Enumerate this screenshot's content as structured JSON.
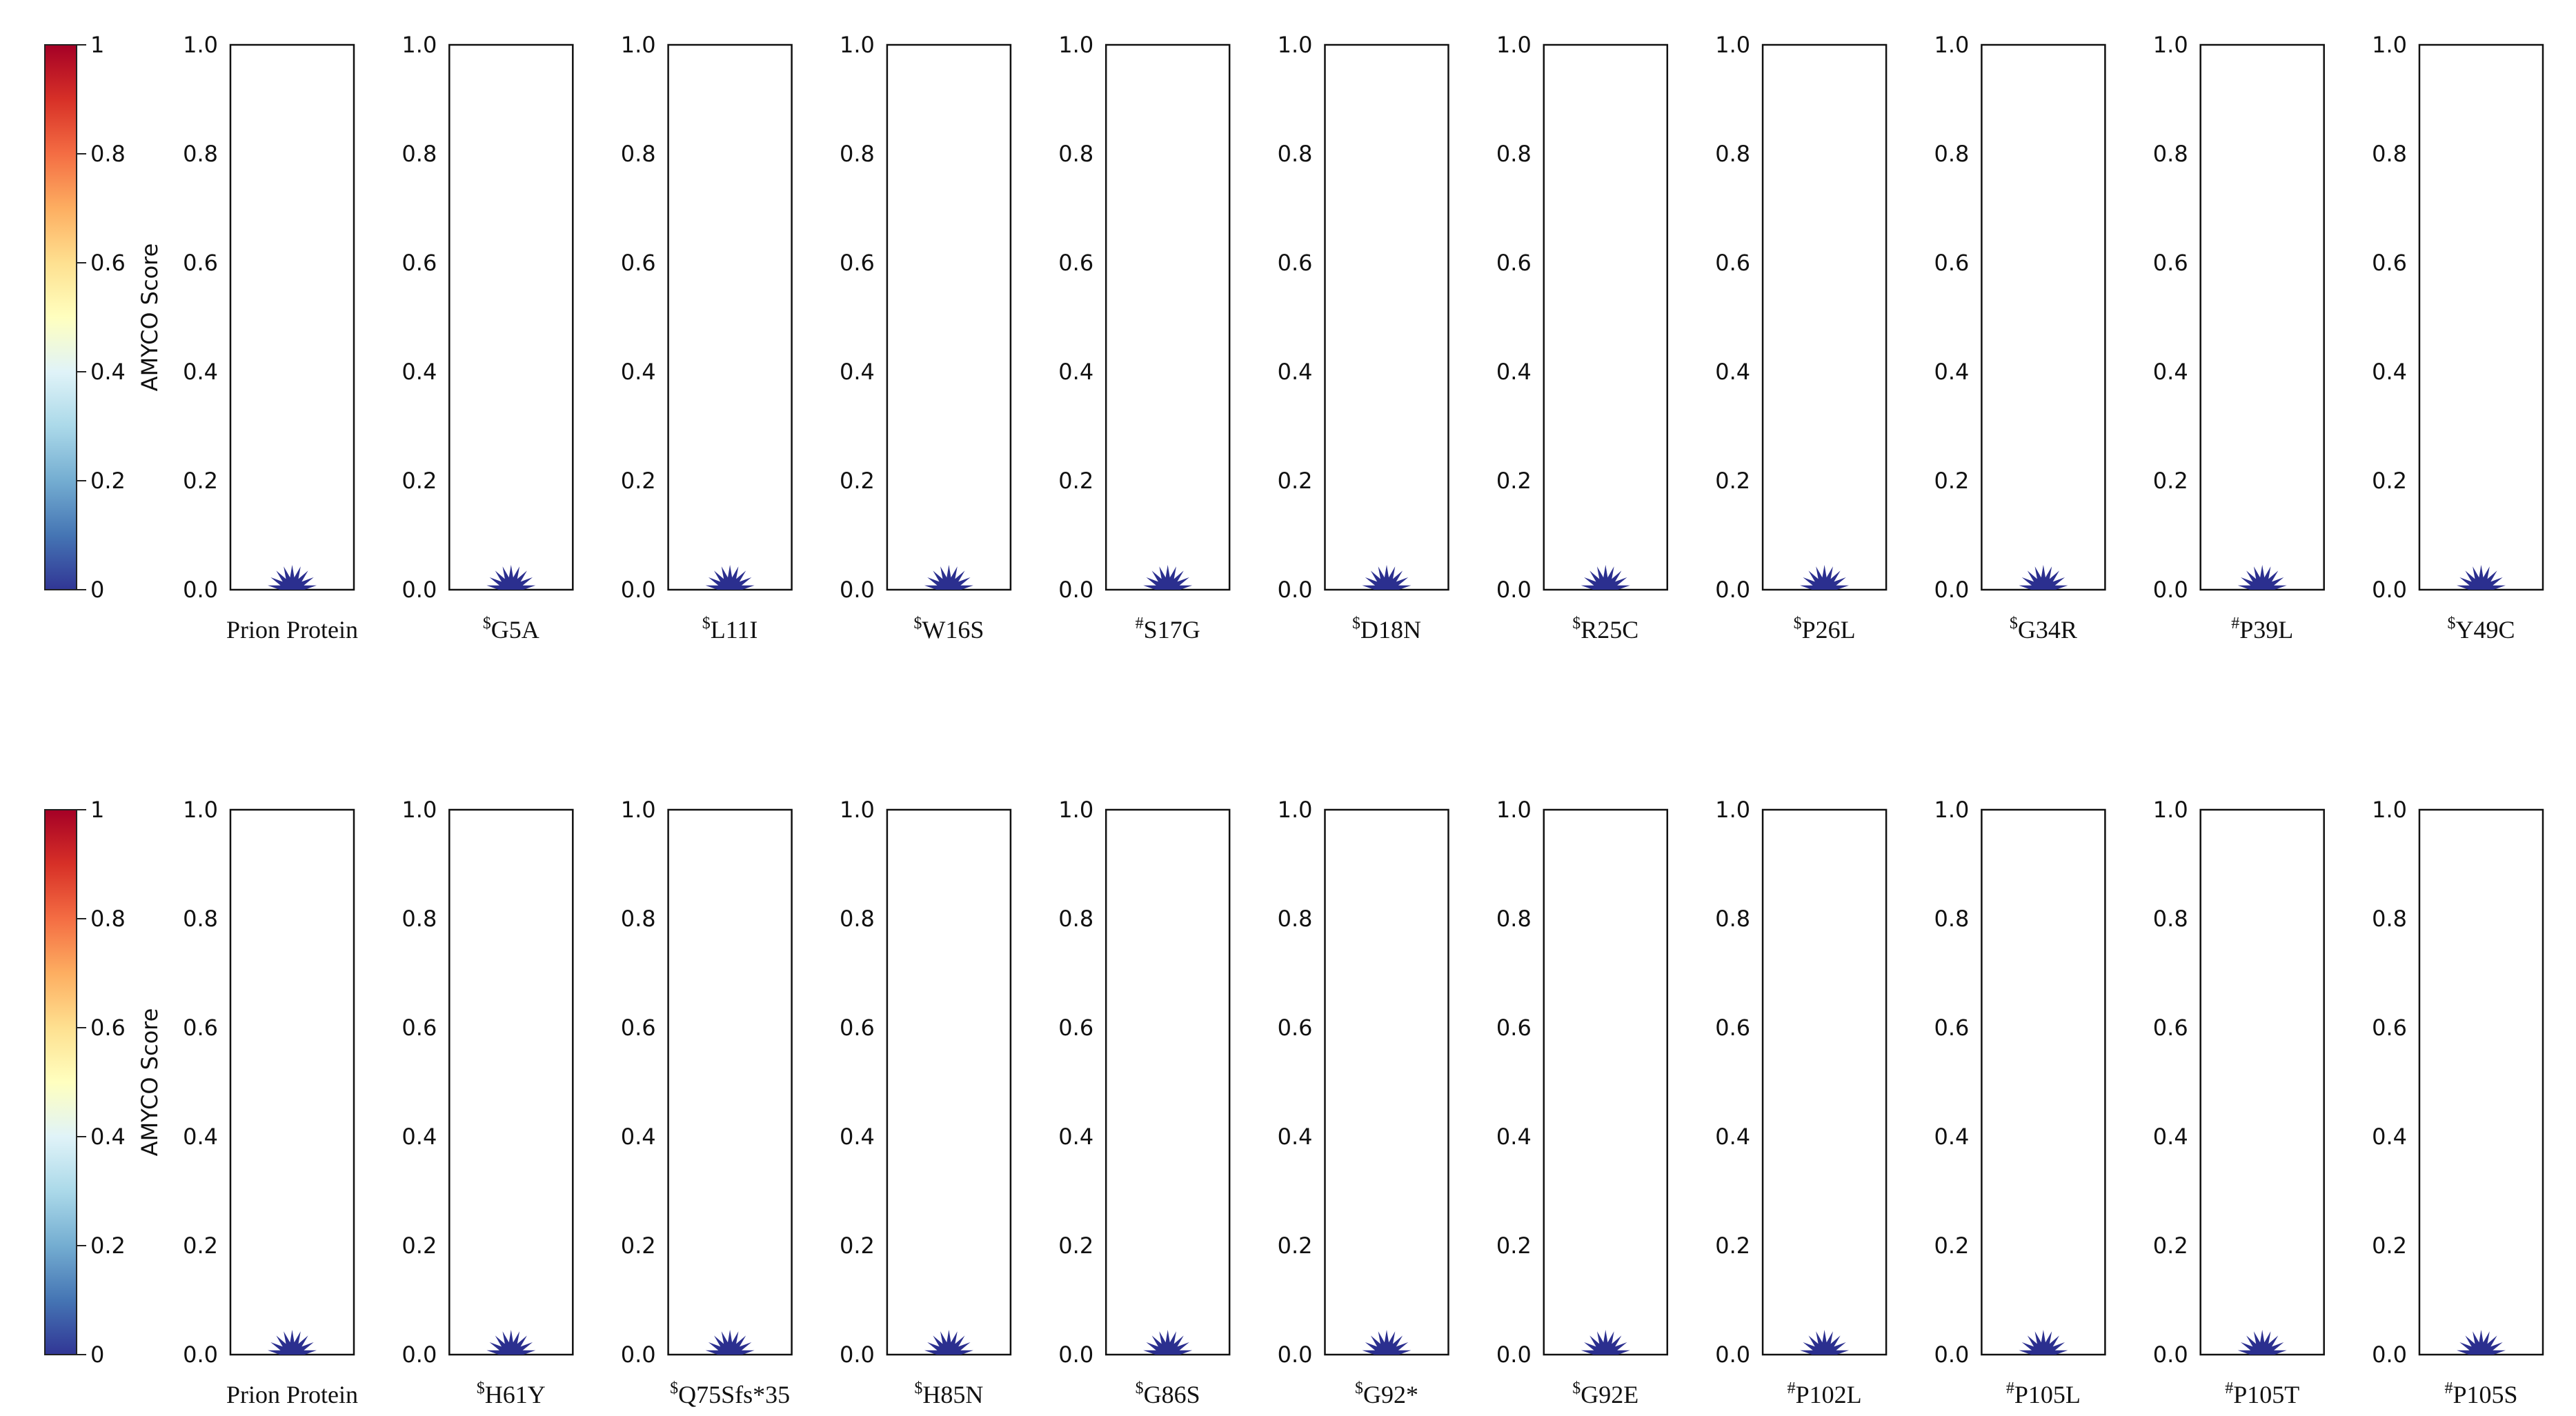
{
  "chart_data": [
    {
      "type": "scatter",
      "description_row": 1,
      "colorbar": {
        "label": "AMYCO Score",
        "ticks": [
          "0",
          "0.2",
          "0.4",
          "0.6",
          "0.8",
          "1"
        ],
        "range": [
          0,
          1
        ],
        "colormap": [
          "#313695",
          "#4575b4",
          "#74add1",
          "#abd9e9",
          "#e0f3f8",
          "#ffffbf",
          "#fee090",
          "#fdae61",
          "#f46d43",
          "#d73027",
          "#a50026"
        ]
      },
      "ylim": [
        0,
        1
      ],
      "yticks": [
        "0.0",
        "0.2",
        "0.4",
        "0.6",
        "0.8",
        "1.0"
      ],
      "panels": [
        {
          "prefix": "",
          "label": "Prion Protein",
          "value": 0
        },
        {
          "prefix": "$",
          "label": "G5A",
          "value": 0
        },
        {
          "prefix": "$",
          "label": "L11I",
          "value": 0
        },
        {
          "prefix": "$",
          "label": "W16S",
          "value": 0
        },
        {
          "prefix": "#",
          "label": "S17G",
          "value": 0
        },
        {
          "prefix": "$",
          "label": "D18N",
          "value": 0
        },
        {
          "prefix": "$",
          "label": "R25C",
          "value": 0
        },
        {
          "prefix": "$",
          "label": "P26L",
          "value": 0
        },
        {
          "prefix": "$",
          "label": "G34R",
          "value": 0
        },
        {
          "prefix": "#",
          "label": "P39L",
          "value": 0
        },
        {
          "prefix": "$",
          "label": "Y49C",
          "value": 0
        }
      ],
      "marker_color": "#2b2f8f"
    },
    {
      "type": "scatter",
      "description_row": 2,
      "colorbar": {
        "label": "AMYCO Score",
        "ticks": [
          "0",
          "0.2",
          "0.4",
          "0.6",
          "0.8",
          "1"
        ],
        "range": [
          0,
          1
        ],
        "colormap": [
          "#313695",
          "#4575b4",
          "#74add1",
          "#abd9e9",
          "#e0f3f8",
          "#ffffbf",
          "#fee090",
          "#fdae61",
          "#f46d43",
          "#d73027",
          "#a50026"
        ]
      },
      "ylim": [
        0,
        1
      ],
      "yticks": [
        "0.0",
        "0.2",
        "0.4",
        "0.6",
        "0.8",
        "1.0"
      ],
      "panels": [
        {
          "prefix": "",
          "label": "Prion Protein",
          "value": 0
        },
        {
          "prefix": "$",
          "label": "H61Y",
          "value": 0
        },
        {
          "prefix": "$",
          "label": "Q75Sfs*35",
          "value": 0
        },
        {
          "prefix": "$",
          "label": "H85N",
          "value": 0
        },
        {
          "prefix": "$",
          "label": "G86S",
          "value": 0
        },
        {
          "prefix": "$",
          "label": "G92*",
          "value": 0
        },
        {
          "prefix": "$",
          "label": "G92E",
          "value": 0
        },
        {
          "prefix": "#",
          "label": "P102L",
          "value": 0
        },
        {
          "prefix": "#",
          "label": "P105L",
          "value": 0
        },
        {
          "prefix": "#",
          "label": "P105T",
          "value": 0
        },
        {
          "prefix": "#",
          "label": "P105S",
          "value": 0
        }
      ],
      "marker_color": "#2b2f8f"
    }
  ]
}
